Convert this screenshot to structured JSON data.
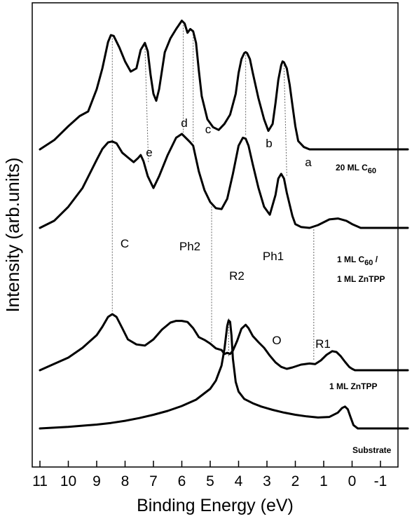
{
  "chart_data": {
    "type": "line",
    "title": "",
    "xlabel": "Binding Energy (eV)",
    "ylabel": "Intensity (arb.units)",
    "xlim": [
      11,
      -1
    ],
    "x_reversed": true,
    "xticks": [
      11,
      10,
      9,
      8,
      7,
      6,
      5,
      4,
      3,
      2,
      1,
      0,
      -1
    ],
    "yticks": [],
    "grid": false,
    "legend": "labels placed next to curves on the right",
    "line_color": "#000000",
    "guide_color": "#666666",
    "series": [
      {
        "name": "Substrate",
        "x": [
          11.0,
          10.0,
          9.0,
          8.5,
          8.0,
          7.5,
          7.0,
          6.5,
          6.0,
          5.5,
          5.0,
          4.8,
          4.6,
          4.5,
          4.4,
          4.35,
          4.3,
          4.25,
          4.2,
          4.1,
          4.0,
          3.8,
          3.5,
          3.2,
          2.8,
          2.4,
          2.0,
          1.6,
          1.2,
          0.8,
          0.5,
          0.35,
          0.25,
          0.15,
          0.05,
          -0.05,
          -0.2,
          -0.5,
          -1.0
        ],
        "values": [
          0.0,
          0.06,
          0.14,
          0.2,
          0.28,
          0.38,
          0.5,
          0.64,
          0.82,
          1.05,
          1.45,
          1.75,
          2.3,
          2.9,
          3.75,
          3.95,
          3.9,
          3.4,
          2.55,
          1.7,
          1.35,
          1.08,
          0.92,
          0.8,
          0.68,
          0.58,
          0.5,
          0.44,
          0.4,
          0.42,
          0.58,
          0.75,
          0.8,
          0.7,
          0.4,
          0.12,
          0.0,
          0.0,
          0.0
        ]
      },
      {
        "name": "1 ML ZnTPP",
        "x": [
          11.0,
          10.6,
          10.0,
          9.5,
          9.0,
          8.8,
          8.6,
          8.45,
          8.3,
          8.1,
          7.9,
          7.6,
          7.3,
          7.0,
          6.7,
          6.4,
          6.2,
          6.0,
          5.8,
          5.6,
          5.4,
          5.2,
          5.0,
          4.8,
          4.6,
          4.5,
          4.4,
          4.3,
          4.2,
          4.05,
          3.9,
          3.75,
          3.65,
          3.5,
          3.3,
          3.1,
          2.9,
          2.7,
          2.5,
          2.3,
          2.1,
          1.8,
          1.5,
          1.3,
          1.1,
          0.9,
          0.7,
          0.55,
          0.4,
          0.25,
          0.1,
          0.0,
          -0.1,
          -0.3,
          -1.0
        ],
        "values": [
          0.0,
          0.18,
          0.45,
          0.8,
          1.25,
          1.55,
          1.9,
          2.0,
          1.9,
          1.5,
          1.1,
          0.92,
          0.88,
          1.1,
          1.45,
          1.7,
          1.76,
          1.76,
          1.72,
          1.5,
          1.18,
          1.08,
          0.95,
          0.78,
          0.72,
          0.58,
          0.62,
          0.58,
          0.7,
          1.05,
          1.48,
          1.62,
          1.5,
          1.22,
          1.0,
          0.8,
          0.52,
          0.28,
          0.12,
          0.05,
          0.1,
          0.2,
          0.24,
          0.22,
          0.35,
          0.55,
          0.68,
          0.65,
          0.5,
          0.3,
          0.12,
          0.05,
          0.0,
          0.0,
          0.0
        ]
      },
      {
        "name": "1 ML C60 / 1 ML ZnTPP",
        "x": [
          11.0,
          10.5,
          10.0,
          9.5,
          9.0,
          8.8,
          8.6,
          8.45,
          8.3,
          8.1,
          7.9,
          7.7,
          7.55,
          7.45,
          7.35,
          7.2,
          7.0,
          6.8,
          6.5,
          6.2,
          6.0,
          5.8,
          5.7,
          5.6,
          5.4,
          5.2,
          5.0,
          4.8,
          4.6,
          4.4,
          4.2,
          4.0,
          3.85,
          3.75,
          3.65,
          3.5,
          3.3,
          3.1,
          2.9,
          2.7,
          2.6,
          2.5,
          2.4,
          2.3,
          2.1,
          2.0,
          1.8,
          1.5,
          1.2,
          0.8,
          0.5,
          0.2,
          0.0,
          -0.3,
          -1.0
        ],
        "values": [
          0.0,
          0.15,
          0.45,
          0.85,
          1.45,
          1.68,
          1.82,
          1.84,
          1.8,
          1.6,
          1.5,
          1.4,
          1.48,
          1.55,
          1.42,
          1.1,
          0.85,
          1.1,
          1.55,
          1.92,
          2.0,
          1.88,
          1.82,
          1.75,
          1.2,
          0.8,
          0.55,
          0.42,
          0.4,
          0.62,
          1.15,
          1.75,
          1.92,
          1.9,
          1.75,
          1.35,
          0.85,
          0.45,
          0.28,
          0.7,
          1.05,
          1.15,
          1.05,
          0.75,
          0.25,
          0.08,
          0.02,
          0.0,
          0.06,
          0.18,
          0.2,
          0.15,
          0.08,
          0.0,
          0.0
        ]
      },
      {
        "name": "20 ML C60",
        "x": [
          11.0,
          10.5,
          10.0,
          9.6,
          9.3,
          9.0,
          8.8,
          8.6,
          8.5,
          8.4,
          8.2,
          8.0,
          7.8,
          7.6,
          7.45,
          7.3,
          7.2,
          7.1,
          7.0,
          6.9,
          6.8,
          6.6,
          6.4,
          6.2,
          6.0,
          5.9,
          5.8,
          5.7,
          5.6,
          5.5,
          5.4,
          5.3,
          5.1,
          4.9,
          4.7,
          4.5,
          4.3,
          4.1,
          4.0,
          3.9,
          3.8,
          3.75,
          3.7,
          3.6,
          3.5,
          3.3,
          3.1,
          2.95,
          2.8,
          2.7,
          2.6,
          2.5,
          2.45,
          2.4,
          2.3,
          2.2,
          2.1,
          2.0,
          1.9,
          1.7,
          1.5,
          1.0,
          0.5,
          0.0,
          -0.5,
          -1.0
        ],
        "values": [
          0.0,
          0.2,
          0.5,
          0.72,
          0.82,
          1.3,
          1.75,
          2.32,
          2.47,
          2.45,
          2.2,
          1.9,
          1.68,
          1.75,
          2.15,
          2.3,
          2.12,
          1.6,
          1.2,
          1.05,
          1.3,
          2.1,
          2.4,
          2.6,
          2.78,
          2.72,
          2.52,
          2.6,
          2.55,
          2.3,
          1.7,
          1.15,
          0.65,
          0.48,
          0.42,
          0.55,
          0.75,
          1.2,
          1.65,
          1.95,
          2.08,
          2.1,
          2.08,
          1.95,
          1.65,
          1.1,
          0.65,
          0.4,
          0.55,
          1.0,
          1.5,
          1.82,
          1.9,
          1.88,
          1.75,
          1.4,
          0.95,
          0.5,
          0.18,
          0.05,
          0.0,
          0.0,
          0.0,
          0.0,
          0.0,
          0.0
        ]
      }
    ],
    "curve_labels": [
      {
        "series": "20 ML C60",
        "main": "20 ML C",
        "sub": "60",
        "tail": ""
      },
      {
        "series": "1 ML C60 / 1 ML ZnTPP",
        "main": "1 ML C",
        "sub": "60",
        "tail": " /",
        "line2": "1 ML ZnTPP"
      },
      {
        "series": "1 ML ZnTPP",
        "main": "1 ML ZnTPP"
      },
      {
        "series": "Substrate",
        "main": "Substrate"
      }
    ],
    "peak_annotations": [
      {
        "label": "e",
        "x": 7.45
      },
      {
        "label": "d",
        "x": 6.1
      },
      {
        "label": "c",
        "x": 5.65
      },
      {
        "label": "b",
        "x": 3.75
      },
      {
        "label": "a",
        "x": 2.45
      },
      {
        "label": "C",
        "x": 8.45
      },
      {
        "label": "Ph2",
        "x": 6.1
      },
      {
        "label": "R2",
        "x": 4.95
      },
      {
        "label": "Ph1",
        "x": 3.75
      },
      {
        "label": "O",
        "x": 4.3
      },
      {
        "label": "R1",
        "x": 1.35
      }
    ],
    "guide_lines": [
      {
        "x": 8.45
      },
      {
        "x": 7.3
      },
      {
        "x": 5.95
      },
      {
        "x": 5.6
      },
      {
        "x": 3.75
      },
      {
        "x": 2.4
      },
      {
        "x": 4.95
      },
      {
        "x": 4.35
      },
      {
        "x": 1.35
      }
    ]
  }
}
